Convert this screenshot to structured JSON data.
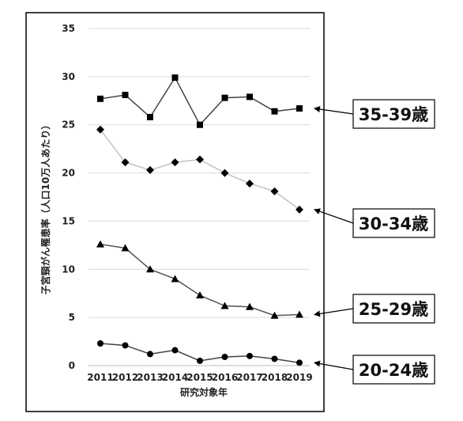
{
  "chart_data": {
    "type": "line",
    "xlabel": "研究対象年",
    "ylabel": "子宮頸がん罹患率（人口10万人あたり）",
    "ylim": [
      0,
      35
    ],
    "yticks": [
      0,
      5,
      10,
      15,
      20,
      25,
      30,
      35
    ],
    "grid": true,
    "legend": "callouts-right",
    "x": [
      "2011",
      "2012",
      "2013",
      "2014",
      "2015",
      "2016",
      "2017",
      "2018",
      "2019"
    ],
    "series": [
      {
        "name": "35-39歳",
        "marker": "square",
        "color": "#444444",
        "values": [
          27.7,
          28.1,
          25.8,
          29.9,
          25.0,
          27.8,
          27.9,
          26.4,
          26.7
        ]
      },
      {
        "name": "30-34歳",
        "marker": "diamond",
        "color": "#c0c0c0",
        "values": [
          24.5,
          21.1,
          20.3,
          21.1,
          21.4,
          20.0,
          18.9,
          18.1,
          16.2
        ]
      },
      {
        "name": "25-29歳",
        "marker": "triangle",
        "color": "#555555",
        "values": [
          12.6,
          12.2,
          10.0,
          9.0,
          7.3,
          6.2,
          6.1,
          5.2,
          5.3
        ]
      },
      {
        "name": "20-24歳",
        "marker": "circle",
        "color": "#444444",
        "values": [
          2.3,
          2.1,
          1.2,
          1.6,
          0.5,
          0.9,
          1.0,
          0.7,
          0.3
        ]
      }
    ]
  }
}
